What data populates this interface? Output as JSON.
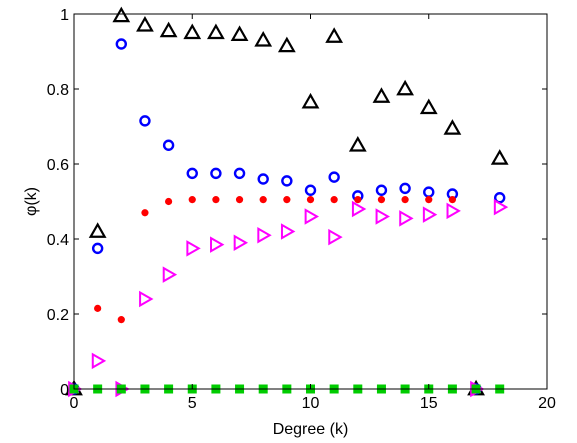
{
  "chart_data": {
    "type": "scatter",
    "title": "",
    "xlabel": "Degree (k)",
    "ylabel": "φ(k)",
    "xlim": [
      0,
      20
    ],
    "ylim": [
      0,
      1
    ],
    "xticks": [
      0,
      5,
      10,
      15,
      20
    ],
    "yticks": [
      0,
      0.2,
      0.4,
      0.6,
      0.8,
      1
    ],
    "xtick_labels": [
      "0",
      "5",
      "10",
      "15",
      "20"
    ],
    "ytick_labels": [
      "0",
      "0.2",
      "0.4",
      "0.6",
      "0.8",
      "1"
    ],
    "grid": false,
    "legend": "none",
    "series": [
      {
        "marker": "triangle-up",
        "color": "#000000",
        "filled": false,
        "points": [
          [
            0,
            0
          ],
          [
            1,
            0.42
          ],
          [
            2,
            0.995
          ],
          [
            3,
            0.97
          ],
          [
            4,
            0.955
          ],
          [
            5,
            0.95
          ],
          [
            6,
            0.95
          ],
          [
            7,
            0.945
          ],
          [
            8,
            0.93
          ],
          [
            9,
            0.915
          ],
          [
            10,
            0.765
          ],
          [
            11,
            0.94
          ],
          [
            12,
            0.65
          ],
          [
            13,
            0.78
          ],
          [
            14,
            0.8
          ],
          [
            15,
            0.75
          ],
          [
            16,
            0.695
          ],
          [
            17,
            0
          ],
          [
            18,
            0.615
          ]
        ]
      },
      {
        "marker": "circle",
        "color": "#0000ff",
        "filled": false,
        "points": [
          [
            0,
            0
          ],
          [
            1,
            0.375
          ],
          [
            2,
            0.92
          ],
          [
            3,
            0.715
          ],
          [
            4,
            0.65
          ],
          [
            5,
            0.575
          ],
          [
            6,
            0.575
          ],
          [
            7,
            0.575
          ],
          [
            8,
            0.56
          ],
          [
            9,
            0.555
          ],
          [
            10,
            0.53
          ],
          [
            11,
            0.565
          ],
          [
            12,
            0.515
          ],
          [
            13,
            0.53
          ],
          [
            14,
            0.535
          ],
          [
            15,
            0.525
          ],
          [
            16,
            0.52
          ],
          [
            17,
            0
          ],
          [
            18,
            0.51
          ]
        ]
      },
      {
        "marker": "dot",
        "color": "#ff0000",
        "filled": true,
        "points": [
          [
            0,
            0
          ],
          [
            1,
            0.215
          ],
          [
            2,
            0.185
          ],
          [
            3,
            0.47
          ],
          [
            4,
            0.5
          ],
          [
            5,
            0.505
          ],
          [
            6,
            0.505
          ],
          [
            7,
            0.505
          ],
          [
            8,
            0.505
          ],
          [
            9,
            0.505
          ],
          [
            10,
            0.505
          ],
          [
            11,
            0.505
          ],
          [
            12,
            0.505
          ],
          [
            13,
            0.505
          ],
          [
            14,
            0.505
          ],
          [
            15,
            0.505
          ],
          [
            16,
            0.505
          ],
          [
            17,
            0
          ]
        ]
      },
      {
        "marker": "triangle-right",
        "color": "#ff00ff",
        "filled": false,
        "points": [
          [
            0,
            0
          ],
          [
            1,
            0.075
          ],
          [
            2,
            0
          ],
          [
            3,
            0.24
          ],
          [
            4,
            0.305
          ],
          [
            5,
            0.375
          ],
          [
            6,
            0.385
          ],
          [
            7,
            0.39
          ],
          [
            8,
            0.41
          ],
          [
            9,
            0.42
          ],
          [
            10,
            0.46
          ],
          [
            11,
            0.405
          ],
          [
            12,
            0.48
          ],
          [
            13,
            0.46
          ],
          [
            14,
            0.455
          ],
          [
            15,
            0.465
          ],
          [
            16,
            0.475
          ],
          [
            17,
            0
          ],
          [
            18,
            0.485
          ]
        ]
      },
      {
        "marker": "square",
        "color": "#00cc00",
        "filled": true,
        "points": [
          [
            0,
            0
          ],
          [
            1,
            0
          ],
          [
            2,
            0
          ],
          [
            3,
            0
          ],
          [
            4,
            0
          ],
          [
            5,
            0
          ],
          [
            6,
            0
          ],
          [
            7,
            0
          ],
          [
            8,
            0
          ],
          [
            9,
            0
          ],
          [
            10,
            0
          ],
          [
            11,
            0
          ],
          [
            12,
            0
          ],
          [
            13,
            0
          ],
          [
            14,
            0
          ],
          [
            15,
            0
          ],
          [
            16,
            0
          ],
          [
            17,
            0
          ],
          [
            18,
            0
          ]
        ]
      }
    ]
  }
}
